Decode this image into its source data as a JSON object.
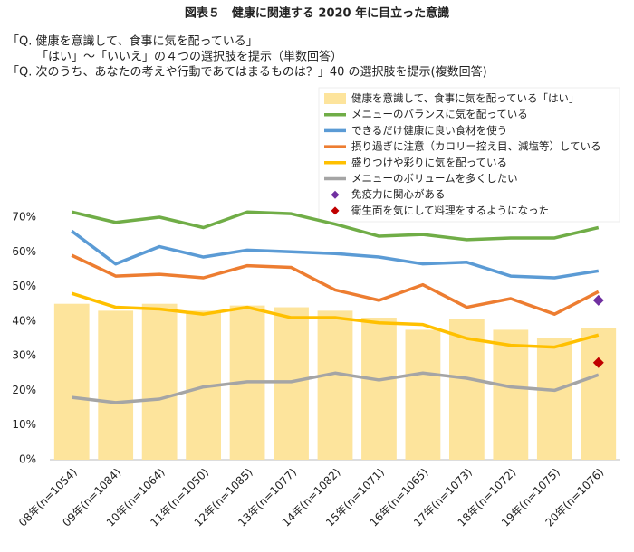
{
  "chart_data": {
    "type": "combo",
    "title": "図表５　健康に関連する 2020 年に目立った意識",
    "subtitle": [
      "「Q. 健康を意識して、食事に気を配っている」",
      "「はい」～「いいえ」の４つの選択肢を提示（単数回答）",
      "「Q. 次のうち、あなたの考えや行動であてはまるものは？」40 の選択肢を提示(複数回答)"
    ],
    "categories": [
      "08年(n=1054)",
      "09年(n=1084)",
      "10年(n=1064)",
      "11年(n=1050)",
      "12年(n=1085)",
      "13年(n=1077)",
      "14年(n=1082)",
      "15年(n=1071)",
      "16年(n=1065)",
      "17年(n=1073)",
      "18年(n=1072)",
      "19年(n=1075)",
      "20年(n=1076)"
    ],
    "series": [
      {
        "name": "健康を意識して、食事に気を配っている「はい」",
        "kind": "bar",
        "color": "#fde49c",
        "values": [
          45,
          43,
          45,
          43,
          44.5,
          44,
          43,
          41,
          37.5,
          40.5,
          37.5,
          35,
          38
        ]
      },
      {
        "name": "メニューのバランスに気を配っている",
        "kind": "line",
        "color": "#70ad47",
        "values": [
          71.5,
          68.5,
          70,
          67,
          71.5,
          71,
          68,
          64.5,
          65,
          63.5,
          64,
          64,
          67
        ]
      },
      {
        "name": "できるだけ健康に良い食材を使う",
        "kind": "line",
        "color": "#5b9bd5",
        "values": [
          66,
          56.5,
          61.5,
          58.5,
          60.5,
          60,
          59.5,
          58.5,
          56.5,
          57,
          53,
          52.5,
          54.5
        ]
      },
      {
        "name": "摂り過ぎに注意（カロリー控え目、減塩等）している",
        "kind": "line",
        "color": "#ed7d31",
        "values": [
          59,
          53,
          53.5,
          52.5,
          56,
          55.5,
          49,
          46,
          50.5,
          44,
          46.5,
          42,
          48.5
        ]
      },
      {
        "name": "盛りつけや彩りに気を配っている",
        "kind": "line",
        "color": "#ffc000",
        "values": [
          48,
          44,
          43.5,
          42,
          44,
          41,
          41,
          39.5,
          39,
          35,
          33,
          32.5,
          36
        ]
      },
      {
        "name": "メニューのボリュームを多くしたい",
        "kind": "line",
        "color": "#a5a5a5",
        "values": [
          18,
          16.5,
          17.5,
          21,
          22.5,
          22.5,
          25,
          23,
          25,
          23.5,
          21,
          20,
          24.5
        ]
      },
      {
        "name": "免疫力に関心がある",
        "kind": "marker",
        "color": "#7030a0",
        "values": [
          null,
          null,
          null,
          null,
          null,
          null,
          null,
          null,
          null,
          null,
          null,
          null,
          46
        ]
      },
      {
        "name": "衛生面を気にして料理をするようになった",
        "kind": "marker",
        "color": "#c00000",
        "values": [
          null,
          null,
          null,
          null,
          null,
          null,
          null,
          null,
          null,
          null,
          null,
          null,
          28
        ]
      }
    ],
    "ylim": [
      0,
      70
    ],
    "yticks": [
      {
        "value": 0,
        "label": "0%"
      },
      {
        "value": 10,
        "label": "10%"
      },
      {
        "value": 20,
        "label": "20%"
      },
      {
        "value": 30,
        "label": "30%"
      },
      {
        "value": 40,
        "label": "40%"
      },
      {
        "value": 50,
        "label": "50%"
      },
      {
        "value": 60,
        "label": "60%"
      },
      {
        "value": 70,
        "label": "70%"
      }
    ],
    "grid": false
  }
}
